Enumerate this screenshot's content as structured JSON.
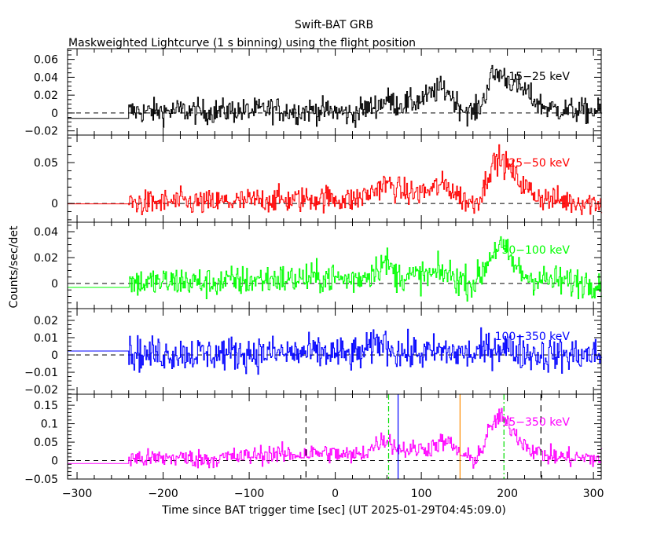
{
  "chart_data": {
    "type": "line",
    "title": "Swift-BAT GRB",
    "subtitle": "Maskweighted Lightcurve (1 s binning) using the flight position",
    "xlabel": "Time since BAT trigger time [sec] (UT 2025-01-29T04:45:09.0)",
    "ylabel": "Counts/sec/det",
    "xlim": [
      -311,
      309
    ],
    "xticks": [
      -300,
      -200,
      -100,
      0,
      100,
      200,
      300
    ],
    "grid": false,
    "data_start": -240,
    "profile_step": 10,
    "panels": [
      {
        "name": "15-25 keV",
        "label": "15−25 keV",
        "color": "#000000",
        "ylim": [
          -0.0247,
          0.072
        ],
        "yticks": [
          -0.02,
          0,
          0.02,
          0.04,
          0.06
        ],
        "yticklabels": [
          "−0.02",
          "0",
          "0.02",
          "0.04",
          "0.06"
        ],
        "yminor": 0.005,
        "pre_level": -0.006,
        "noise_sigma": 0.007,
        "values": [
          0.002,
          0.002,
          0.001,
          0.002,
          0.002,
          0.002,
          0.003,
          0.002,
          0.002,
          0.001,
          0.002,
          0.002,
          0.003,
          0.002,
          0.002,
          0.003,
          0.004,
          0.004,
          0.003,
          0.002,
          0.002,
          0.003,
          0.003,
          0.002,
          0.002,
          0.0,
          -0.002,
          0.004,
          0.006,
          0.01,
          0.015,
          0.01,
          0.01,
          0.012,
          0.015,
          0.02,
          0.027,
          0.025,
          0.012,
          0.003,
          0.0,
          0.01,
          0.04,
          0.045,
          0.038,
          0.03,
          0.025,
          0.015,
          0.008,
          0.005,
          0.004,
          0.003,
          0.003,
          0.002,
          0.002,
          0.002
        ]
      },
      {
        "name": "25-50 keV",
        "label": "25−50 keV",
        "color": "#ff0000",
        "ylim": [
          -0.023,
          0.0837
        ],
        "yticks": [
          0,
          0.05
        ],
        "yticklabels": [
          "0",
          "0.05"
        ],
        "yminor": 0.01,
        "pre_level": -0.0005,
        "noise_sigma": 0.008,
        "values": [
          0.001,
          0.001,
          0.0,
          0.001,
          0.001,
          0.002,
          0.002,
          0.001,
          0.001,
          0.0,
          0.001,
          0.002,
          0.002,
          0.002,
          0.003,
          0.004,
          0.005,
          0.005,
          0.004,
          0.004,
          0.005,
          0.006,
          0.006,
          0.007,
          0.006,
          0.005,
          0.004,
          0.008,
          0.012,
          0.02,
          0.024,
          0.018,
          0.014,
          0.012,
          0.014,
          0.016,
          0.022,
          0.022,
          0.012,
          0.004,
          0.0,
          0.012,
          0.045,
          0.055,
          0.045,
          0.032,
          0.02,
          0.012,
          0.007,
          0.005,
          0.004,
          0.003,
          0.002,
          0.002,
          0.001,
          0.001
        ]
      },
      {
        "name": "50-100 keV",
        "label": "50−100 keV",
        "color": "#00ff00",
        "ylim": [
          -0.0194,
          0.0473
        ],
        "yticks": [
          0,
          0.02,
          0.04
        ],
        "yticklabels": [
          "0",
          "0.02",
          "0.04"
        ],
        "yminor": 0.005,
        "pre_level": -0.003,
        "noise_sigma": 0.006,
        "values": [
          0.001,
          0.001,
          0.0,
          0.001,
          0.001,
          0.001,
          0.002,
          0.001,
          0.001,
          0.0,
          0.001,
          0.001,
          0.002,
          0.002,
          0.002,
          0.003,
          0.003,
          0.004,
          0.003,
          0.003,
          0.004,
          0.004,
          0.004,
          0.005,
          0.004,
          0.003,
          0.003,
          0.005,
          0.008,
          0.014,
          0.016,
          0.006,
          0.006,
          0.005,
          0.006,
          0.006,
          0.008,
          0.008,
          0.004,
          0.002,
          0.0,
          0.008,
          0.022,
          0.03,
          0.022,
          0.012,
          0.006,
          0.004,
          0.003,
          0.002,
          0.002,
          0.001,
          0.001,
          0.001,
          0.001,
          0.001
        ]
      },
      {
        "name": "100-350 keV",
        "label": "100−350 keV",
        "color": "#0000ff",
        "ylim": [
          -0.0227,
          0.0268
        ],
        "yticks": [
          -0.02,
          -0.01,
          0,
          0.01,
          0.02
        ],
        "yticklabels": [
          "−0.02",
          "−0.01",
          "0",
          "0.01",
          "0.02"
        ],
        "yminor": 0.0025,
        "pre_level": 0.0023,
        "noise_sigma": 0.005,
        "values": [
          0.001,
          0.001,
          0.0,
          0.001,
          0.001,
          0.001,
          0.001,
          0.001,
          0.001,
          0.0,
          0.001,
          0.001,
          0.001,
          0.001,
          0.001,
          0.001,
          0.001,
          0.001,
          0.001,
          0.001,
          0.001,
          0.001,
          0.001,
          0.001,
          0.001,
          0.0,
          0.0,
          0.001,
          0.003,
          0.008,
          0.006,
          0.002,
          0.001,
          0.001,
          0.001,
          0.001,
          0.002,
          0.002,
          0.001,
          0.001,
          0.0,
          0.002,
          0.004,
          0.005,
          0.004,
          0.002,
          0.001,
          0.001,
          0.0,
          0.0,
          0.0,
          0.0,
          0.0,
          0.0,
          0.0,
          0.0
        ]
      },
      {
        "name": "15-350 keV",
        "label": "15−350 keV",
        "color": "#ff00ff",
        "ylim": [
          -0.05,
          0.18
        ],
        "yticks": [
          -0.05,
          0,
          0.05,
          0.1,
          0.15
        ],
        "yticklabels": [
          "−0.05",
          "0",
          "0.05",
          "0.1",
          "0.15"
        ],
        "yminor": 0.01,
        "pre_level": -0.008,
        "noise_sigma": 0.013,
        "values": [
          0.005,
          0.006,
          0.004,
          0.006,
          0.006,
          0.008,
          0.008,
          0.006,
          0.005,
          0.004,
          0.006,
          0.008,
          0.01,
          0.01,
          0.012,
          0.015,
          0.018,
          0.018,
          0.016,
          0.016,
          0.018,
          0.02,
          0.02,
          0.022,
          0.018,
          0.015,
          0.012,
          0.02,
          0.03,
          0.05,
          0.06,
          0.035,
          0.03,
          0.03,
          0.032,
          0.035,
          0.048,
          0.05,
          0.03,
          0.01,
          0.002,
          0.03,
          0.09,
          0.12,
          0.1,
          0.07,
          0.045,
          0.028,
          0.018,
          0.012,
          0.01,
          0.008,
          0.008,
          0.006,
          0.006,
          0.006
        ]
      }
    ],
    "markers": [
      {
        "t": -34,
        "color": "#000000",
        "style": "dashed"
      },
      {
        "t": 62,
        "color": "#00dd00",
        "style": "dashdot"
      },
      {
        "t": 73,
        "color": "#0000ff",
        "style": "solid"
      },
      {
        "t": 145,
        "color": "#ff8c00",
        "style": "solid"
      },
      {
        "t": 196,
        "color": "#00dd00",
        "style": "dashdot"
      },
      {
        "t": 239,
        "color": "#000000",
        "style": "dashed"
      }
    ]
  }
}
